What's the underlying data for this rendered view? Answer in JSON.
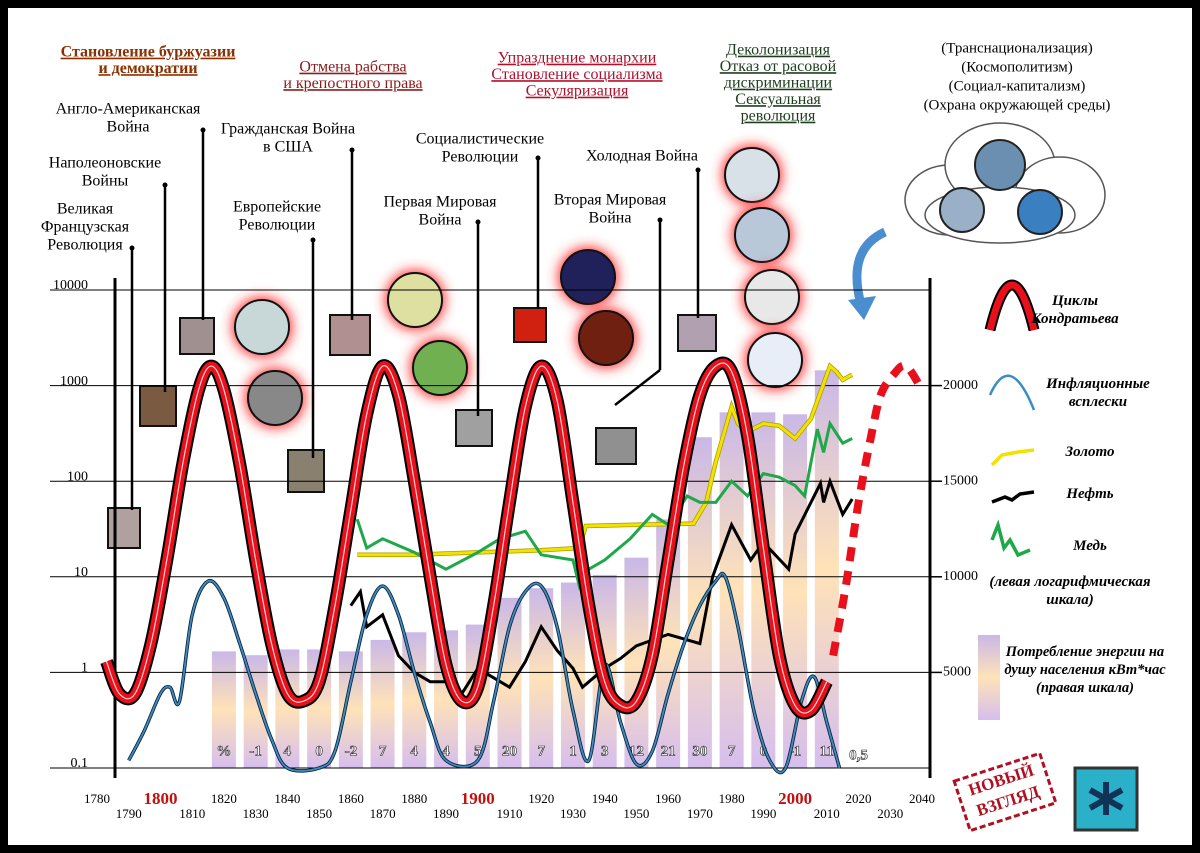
{
  "chart_data": {
    "type": "line",
    "log_scale": true,
    "xlim": [
      1780,
      2040
    ],
    "xticks": [
      1780,
      1790,
      1800,
      1810,
      1820,
      1830,
      1840,
      1850,
      1860,
      1870,
      1880,
      1890,
      1900,
      1910,
      1920,
      1930,
      1940,
      1950,
      1960,
      1970,
      1980,
      1990,
      2000,
      2010,
      2020,
      2030,
      2040
    ],
    "ylim": [
      0.1,
      10000
    ],
    "yticks": [
      0.1,
      1,
      10,
      100,
      1000,
      10000
    ],
    "y2lim": [
      0,
      25000
    ],
    "y2ticks": [
      5000,
      10000,
      15000,
      20000
    ],
    "grid": true,
    "legend": "right",
    "series": [
      {
        "name": "Циклы Кондратьева",
        "color": "#e8101a",
        "smooth": true,
        "x": [
          1783,
          1787,
          1792,
          1797,
          1802,
          1807,
          1812,
          1816,
          1820,
          1825,
          1830,
          1835,
          1840,
          1845,
          1850,
          1855,
          1860,
          1865,
          1870,
          1875,
          1880,
          1885,
          1890,
          1895,
          1900,
          1905,
          1910,
          1915,
          1920,
          1925,
          1930,
          1935,
          1940,
          1945,
          1950,
          1955,
          1960,
          1965,
          1970,
          1975,
          1980,
          1985,
          1990,
          1995,
          2000,
          2005,
          2010
        ],
        "values": [
          1.3,
          0.6,
          0.6,
          2,
          15,
          150,
          900,
          1600,
          900,
          150,
          15,
          2,
          0.6,
          0.5,
          0.8,
          5,
          50,
          500,
          1600,
          800,
          100,
          10,
          1.2,
          0.5,
          0.7,
          5,
          60,
          600,
          1600,
          700,
          60,
          5,
          0.8,
          0.45,
          0.5,
          1.5,
          15,
          150,
          800,
          1600,
          1400,
          300,
          20,
          1.5,
          0.45,
          0.4,
          0.8
        ],
        "forecast_x": [
          2012,
          2016,
          2020,
          2024,
          2027,
          2031,
          2035,
          2040
        ],
        "forecast_values": [
          1.5,
          8,
          60,
          300,
          800,
          1300,
          1600,
          900
        ]
      },
      {
        "name": "Инфляционные всплески",
        "color": "#3a8cc4",
        "smooth": true,
        "x": [
          1790,
          1795,
          1800,
          1803,
          1806,
          1810,
          1815,
          1820,
          1825,
          1830,
          1835,
          1840,
          1850,
          1855,
          1860,
          1865,
          1870,
          1875,
          1880,
          1885,
          1890,
          1900,
          1905,
          1910,
          1915,
          1920,
          1925,
          1930,
          1935,
          1940,
          1945,
          1950,
          1955,
          1960,
          1965,
          1970,
          1975,
          1978,
          1982,
          1987,
          1992,
          1997,
          2002,
          2006,
          2010,
          2014
        ],
        "values": [
          0.12,
          0.25,
          0.6,
          0.7,
          0.5,
          4,
          9,
          6,
          2,
          0.6,
          0.2,
          0.1,
          0.1,
          0.15,
          0.8,
          4,
          8,
          4,
          1,
          0.3,
          0.12,
          0.12,
          0.5,
          3,
          7,
          8,
          3,
          0.4,
          0.12,
          1.2,
          0.3,
          0.11,
          0.15,
          0.6,
          2,
          5,
          9,
          10,
          3,
          0.4,
          0.12,
          0.1,
          0.5,
          0.9,
          0.3,
          0.1
        ]
      },
      {
        "name": "Золото",
        "color": "#f2e200",
        "smooth": false,
        "x": [
          1862,
          1880,
          1900,
          1920,
          1932,
          1934,
          1950,
          1968,
          1972,
          1975,
          1980,
          1982,
          1985,
          1990,
          1995,
          2000,
          2005,
          2008,
          2011,
          2013,
          2015,
          2018
        ],
        "values": [
          17,
          17,
          18,
          19,
          20,
          34,
          35,
          36,
          60,
          160,
          600,
          400,
          330,
          400,
          380,
          280,
          450,
          850,
          1600,
          1400,
          1150,
          1300
        ]
      },
      {
        "name": "Нефть",
        "color": "#000000",
        "smooth": false,
        "x": [
          1860,
          1863,
          1865,
          1870,
          1875,
          1880,
          1885,
          1890,
          1895,
          1900,
          1910,
          1915,
          1920,
          1925,
          1930,
          1933,
          1940,
          1945,
          1950,
          1960,
          1970,
          1974,
          1980,
          1986,
          1990,
          1998,
          2000,
          2008,
          2009,
          2011,
          2015,
          2018
        ],
        "values": [
          5,
          7,
          3,
          4,
          1.5,
          1,
          0.8,
          0.8,
          0.6,
          1.1,
          0.7,
          1.3,
          3,
          1.7,
          1.1,
          0.7,
          1.1,
          1.4,
          1.9,
          2.5,
          2,
          10,
          35,
          15,
          23,
          12,
          28,
          95,
          60,
          100,
          45,
          65
        ]
      },
      {
        "name": "Медь",
        "color": "#1fa84a",
        "smooth": false,
        "x": [
          1862,
          1865,
          1870,
          1880,
          1890,
          1900,
          1907,
          1915,
          1920,
          1930,
          1932,
          1935,
          1940,
          1948,
          1955,
          1960,
          1966,
          1970,
          1975,
          1980,
          1985,
          1990,
          1995,
          2000,
          2003,
          2007,
          2009,
          2011,
          2015,
          2018
        ],
        "values": [
          40,
          20,
          25,
          18,
          12,
          18,
          25,
          30,
          17,
          15,
          8,
          12,
          15,
          25,
          45,
          35,
          70,
          60,
          60,
          100,
          70,
          120,
          110,
          90,
          70,
          350,
          200,
          400,
          250,
          280
        ]
      },
      {
        "name": "Потребление энергии на душу населения кВт*час (правая шкала)",
        "type": "bar",
        "axis": "y2",
        "x": [
          1820,
          1830,
          1840,
          1850,
          1860,
          1870,
          1880,
          1890,
          1900,
          1910,
          1920,
          1930,
          1940,
          1950,
          1960,
          1970,
          1980,
          1990,
          2000,
          2010
        ],
        "values": [
          6100,
          5900,
          6200,
          6200,
          6100,
          6700,
          7100,
          7200,
          7500,
          8900,
          9400,
          9700,
          10100,
          11000,
          13000,
          17300,
          18600,
          18600,
          18500,
          20800
        ],
        "annotations": [
          "%",
          "-1",
          "4",
          "0",
          "-2",
          "7",
          "4",
          "4",
          "5",
          "20",
          "7",
          "1",
          "3",
          "12",
          "21",
          "30",
          "7",
          "0",
          "-1",
          "11"
        ],
        "forecast_label": "0,5"
      }
    ],
    "left_scale_note": "(левая логарифмическая шкала)",
    "headings": [
      {
        "lines": [
          "Становление буржуазии",
          "и демократии"
        ]
      },
      {
        "lines": [
          "Отмена рабства",
          "и крепостного права"
        ]
      },
      {
        "lines": [
          "Упразднение монархии",
          "Становление социализма",
          "Секуляризация"
        ]
      },
      {
        "lines": [
          "Деколонизация",
          "Отказ от расовой",
          "дискриминации",
          "Сексуальная",
          "революция"
        ]
      }
    ],
    "events": [
      {
        "lines": [
          "Великая",
          "Французская",
          "Революция"
        ]
      },
      {
        "lines": [
          "Наполеоновские",
          "Войны"
        ]
      },
      {
        "lines": [
          "Англо-Американская",
          "Война"
        ]
      },
      {
        "lines": [
          "Европейские",
          "Революции"
        ]
      },
      {
        "lines": [
          "Гражданская Война",
          "в США"
        ]
      },
      {
        "lines": [
          "Первая Мировая",
          "Война"
        ]
      },
      {
        "lines": [
          "Социалистические",
          "Революции"
        ]
      },
      {
        "lines": [
          "Вторая Мировая",
          "Война"
        ]
      },
      {
        "lines": [
          "Холодная Война"
        ]
      }
    ],
    "cloud_lines": [
      "(Транснационализация)",
      "(Космополитизм)",
      "(Социал-капитализм)",
      "(Охрана окружающей среды)"
    ],
    "stamp": [
      "НОВЫЙ",
      "ВЗГЛЯД"
    ]
  }
}
